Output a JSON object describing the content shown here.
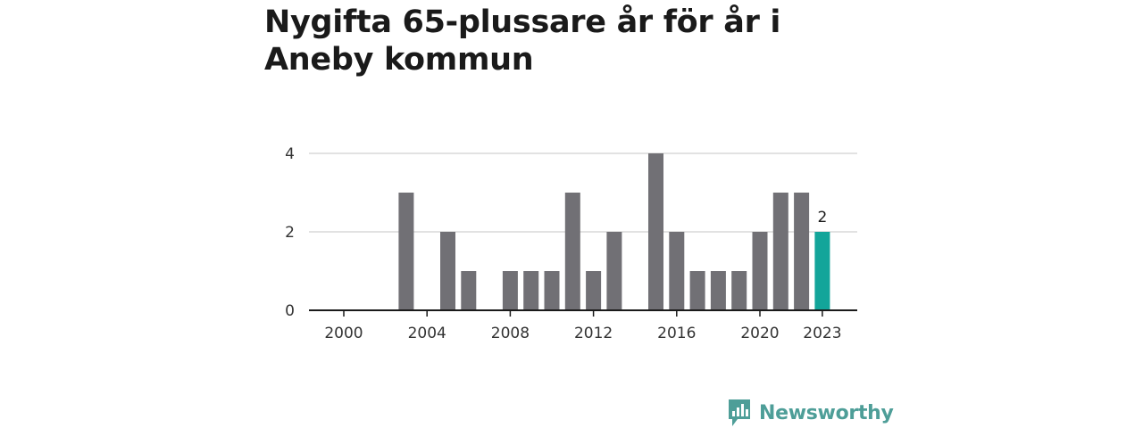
{
  "title": "Nygifta 65-plussare år för år i Aneby kommun",
  "brand": {
    "name": "Newsworthy",
    "color": "#4e9e98"
  },
  "chart_data": {
    "type": "bar",
    "title": "Nygifta 65-plussare år för år i Aneby kommun",
    "xlabel": "",
    "ylabel": "",
    "ylim": [
      0,
      4
    ],
    "yticks": [
      0,
      2,
      4
    ],
    "grid": true,
    "categories": [
      "2000",
      "2001",
      "2002",
      "2003",
      "2004",
      "2005",
      "2006",
      "2007",
      "2008",
      "2009",
      "2010",
      "2011",
      "2012",
      "2013",
      "2014",
      "2015",
      "2016",
      "2017",
      "2018",
      "2019",
      "2020",
      "2021",
      "2022",
      "2023"
    ],
    "values": [
      0,
      0,
      0,
      3,
      0,
      2,
      1,
      0,
      1,
      1,
      1,
      3,
      1,
      2,
      0,
      4,
      2,
      1,
      1,
      1,
      2,
      3,
      3,
      2
    ],
    "xtick_labels": [
      "2000",
      "2004",
      "2008",
      "2012",
      "2016",
      "2020",
      "2023"
    ],
    "highlight": {
      "category": "2023",
      "label": "2",
      "color": "#13a59a"
    },
    "bar_color": "#717075"
  }
}
